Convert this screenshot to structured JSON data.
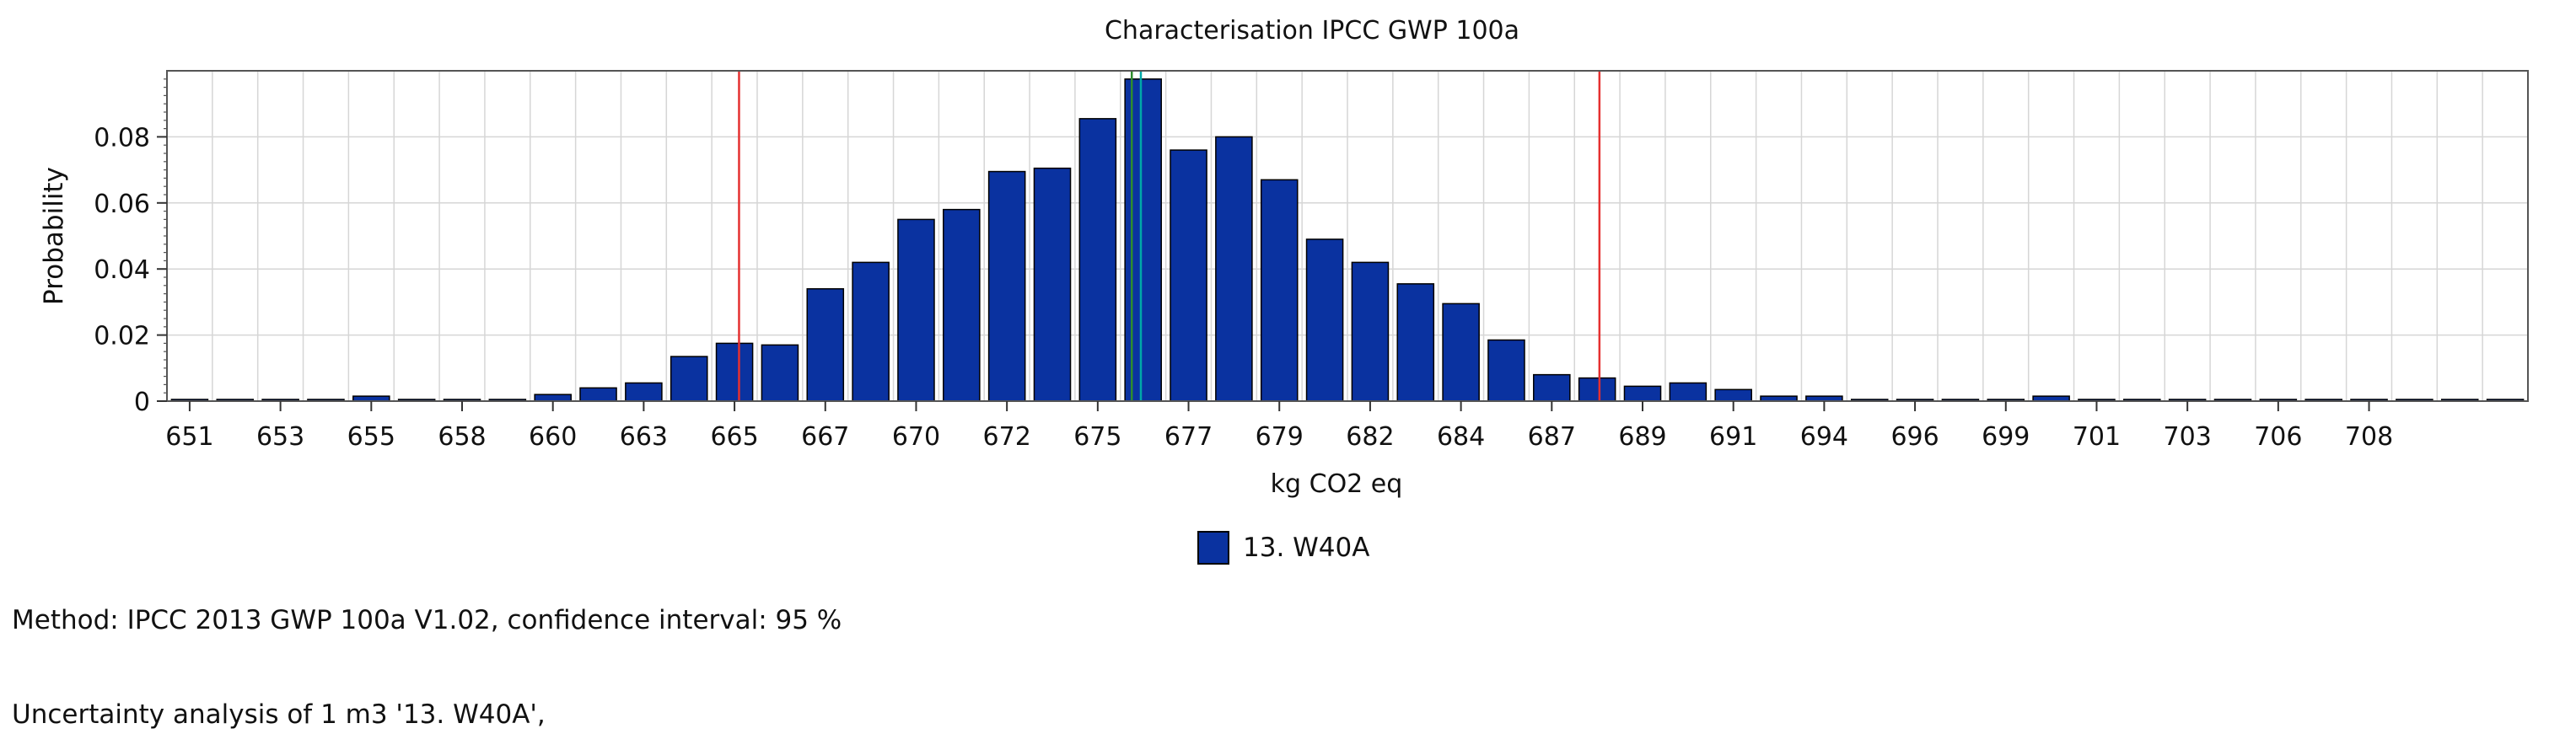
{
  "chart_data": {
    "type": "bar",
    "title": "Characterisation IPCC GWP 100a",
    "xlabel": "kg CO2 eq",
    "ylabel": "Probability",
    "ylim": [
      0,
      0.1
    ],
    "y_ticks": [
      "0",
      "0.02",
      "0.04",
      "0.06",
      "0.08"
    ],
    "x_ticks": [
      "651",
      "653",
      "655",
      "658",
      "660",
      "663",
      "665",
      "667",
      "670",
      "672",
      "675",
      "677",
      "679",
      "682",
      "684",
      "687",
      "689",
      "691",
      "694",
      "696",
      "699",
      "701",
      "703",
      "706",
      "708"
    ],
    "grid": true,
    "legend_position": "bottom-center",
    "series": [
      {
        "name": "13. W40A",
        "color": "#0a32a0",
        "values": [
          0.0005,
          0.0005,
          0.0005,
          0.0005,
          0.0015,
          0.0005,
          0.0005,
          0.0005,
          0.002,
          0.004,
          0.0055,
          0.0135,
          0.0175,
          0.017,
          0.034,
          0.042,
          0.055,
          0.058,
          0.0695,
          0.0705,
          0.0855,
          0.0975,
          0.076,
          0.08,
          0.067,
          0.049,
          0.042,
          0.0355,
          0.0295,
          0.0185,
          0.008,
          0.007,
          0.0045,
          0.0055,
          0.0035,
          0.0015,
          0.0015,
          0.0005,
          0.0005,
          0.0005,
          0.0005,
          0.0015,
          0.0005,
          0.0005,
          0.0005,
          0.0005,
          0.0005,
          0.0005,
          0.0005,
          0.0005,
          0.0005,
          0.0005
        ]
      }
    ],
    "reference_lines": [
      {
        "kind": "confidence-bound",
        "color": "#e53030",
        "bin": 12.6
      },
      {
        "kind": "mean",
        "color": "#00a8a8",
        "bin": 21.45
      },
      {
        "kind": "median",
        "color": "#2e8b2e",
        "bin": 21.25
      },
      {
        "kind": "confidence-bound",
        "color": "#e53030",
        "bin": 31.55
      }
    ]
  },
  "legend": {
    "label": "13. W40A",
    "color": "#0a32a0"
  },
  "footer": {
    "method": "Method: IPCC 2013 GWP 100a V1.02, confidence interval: 95 %",
    "analysis": "Uncertainty analysis of 1 m3 '13. W40A',"
  }
}
